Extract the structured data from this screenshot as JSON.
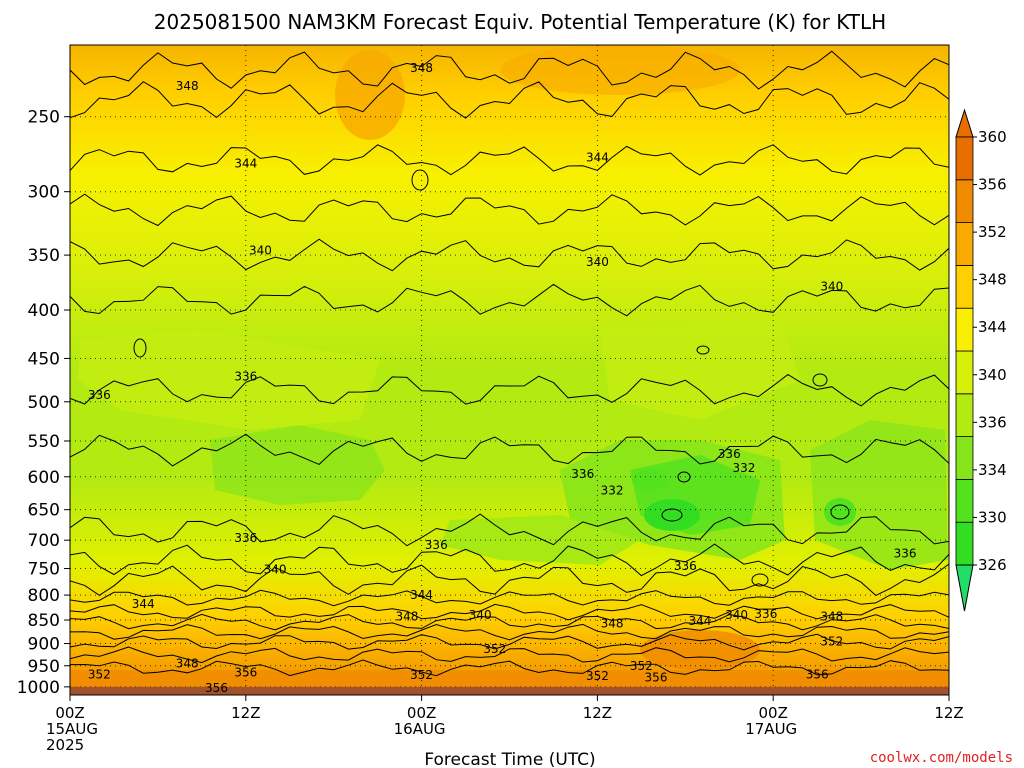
{
  "chart_data": {
    "type": "contour",
    "title": "2025081500 NAM3KM Forecast Equiv. Potential Temperature (K) for KTLH",
    "xlabel": "Forecast Time (UTC)",
    "ylabel": "",
    "y_scale": "log-pressure (hPa), inverted",
    "ylim": [
      1020,
      210
    ],
    "y_ticks": [
      250,
      300,
      350,
      400,
      450,
      500,
      550,
      600,
      650,
      700,
      750,
      800,
      850,
      900,
      950,
      1000
    ],
    "x_ticks": [
      {
        "hour": 0,
        "lines": [
          "00Z",
          "15AUG",
          "2025"
        ]
      },
      {
        "hour": 12,
        "lines": [
          "12Z"
        ]
      },
      {
        "hour": 24,
        "lines": [
          "00Z",
          "16AUG"
        ]
      },
      {
        "hour": 36,
        "lines": [
          "12Z"
        ]
      },
      {
        "hour": 48,
        "lines": [
          "00Z",
          "17AUG"
        ]
      },
      {
        "hour": 60,
        "lines": [
          "12Z"
        ]
      }
    ],
    "xlim_hours": [
      0,
      60
    ],
    "grid": "dotted",
    "colorbar": {
      "position": "right",
      "levels": [
        326,
        330,
        334,
        336,
        340,
        344,
        348,
        352,
        356,
        360
      ],
      "colors": [
        "#33dd22",
        "#55e21e",
        "#86e51a",
        "#b2ea12",
        "#d8ef0a",
        "#f8f000",
        "#ffd000",
        "#f8aa00",
        "#f08a00",
        "#e86e00"
      ]
    },
    "contour_labels": [
      {
        "hour": 24.0,
        "p": 222,
        "text": "348"
      },
      {
        "hour": 8.0,
        "p": 232,
        "text": "348"
      },
      {
        "hour": 12.0,
        "p": 280,
        "text": "344"
      },
      {
        "hour": 36.0,
        "p": 276,
        "text": "344"
      },
      {
        "hour": 13.0,
        "p": 346,
        "text": "340"
      },
      {
        "hour": 36.0,
        "p": 356,
        "text": "340"
      },
      {
        "hour": 52.0,
        "p": 378,
        "text": "340"
      },
      {
        "hour": 12.0,
        "p": 470,
        "text": "336"
      },
      {
        "hour": 2.0,
        "p": 492,
        "text": "336"
      },
      {
        "hour": 45.0,
        "p": 568,
        "text": "336"
      },
      {
        "hour": 46.0,
        "p": 587,
        "text": "332"
      },
      {
        "hour": 35.0,
        "p": 596,
        "text": "336"
      },
      {
        "hour": 37.0,
        "p": 620,
        "text": "332"
      },
      {
        "hour": 12.0,
        "p": 696,
        "text": "336"
      },
      {
        "hour": 25.0,
        "p": 708,
        "text": "336"
      },
      {
        "hour": 14.0,
        "p": 752,
        "text": "340"
      },
      {
        "hour": 42.0,
        "p": 745,
        "text": "336"
      },
      {
        "hour": 57.0,
        "p": 723,
        "text": "336"
      },
      {
        "hour": 5.0,
        "p": 818,
        "text": "344"
      },
      {
        "hour": 24.0,
        "p": 800,
        "text": "344"
      },
      {
        "hour": 23.0,
        "p": 843,
        "text": "348"
      },
      {
        "hour": 28.0,
        "p": 840,
        "text": "340"
      },
      {
        "hour": 37.0,
        "p": 857,
        "text": "348"
      },
      {
        "hour": 43.0,
        "p": 852,
        "text": "344"
      },
      {
        "hour": 45.5,
        "p": 840,
        "text": "340"
      },
      {
        "hour": 47.5,
        "p": 838,
        "text": "336"
      },
      {
        "hour": 52.0,
        "p": 843,
        "text": "348"
      },
      {
        "hour": 52.0,
        "p": 896,
        "text": "352"
      },
      {
        "hour": 29.0,
        "p": 912,
        "text": "352"
      },
      {
        "hour": 8.0,
        "p": 945,
        "text": "348"
      },
      {
        "hour": 12.0,
        "p": 966,
        "text": "356"
      },
      {
        "hour": 2.0,
        "p": 970,
        "text": "352"
      },
      {
        "hour": 10.0,
        "p": 1003,
        "text": "356"
      },
      {
        "hour": 24.0,
        "p": 972,
        "text": "352"
      },
      {
        "hour": 36.0,
        "p": 974,
        "text": "352"
      },
      {
        "hour": 39.0,
        "p": 950,
        "text": "352"
      },
      {
        "hour": 40.0,
        "p": 978,
        "text": "356"
      },
      {
        "hour": 51.0,
        "p": 970,
        "text": "356"
      }
    ],
    "ground_color": "#a0522d"
  },
  "credit": "coolwx.com/models"
}
